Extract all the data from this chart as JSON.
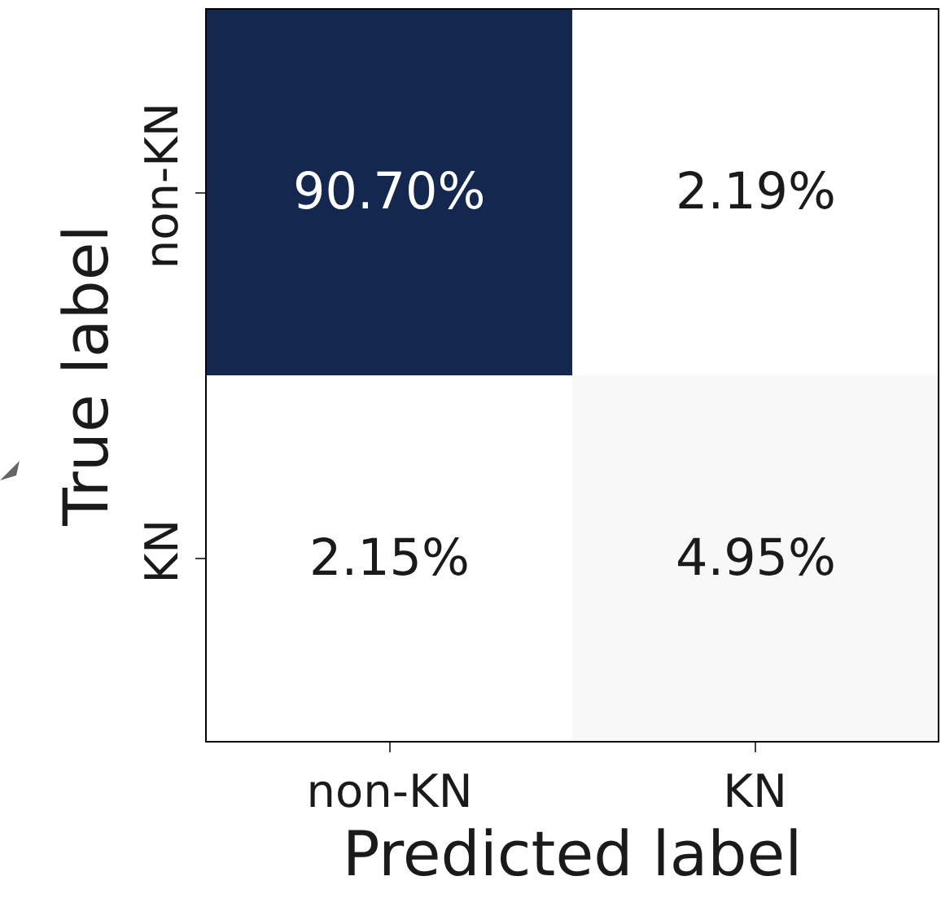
{
  "chart_data": {
    "type": "heatmap",
    "xlabel": "Predicted label",
    "ylabel": "True label",
    "categories": [
      "non-KN",
      "KN"
    ],
    "y_categories": [
      "non-KN",
      "KN"
    ],
    "cells": [
      [
        90.7,
        2.19
      ],
      [
        2.15,
        4.95
      ]
    ],
    "cell_labels": [
      [
        "90.70%",
        "2.19%"
      ],
      [
        "2.15%",
        "4.95%"
      ]
    ]
  }
}
